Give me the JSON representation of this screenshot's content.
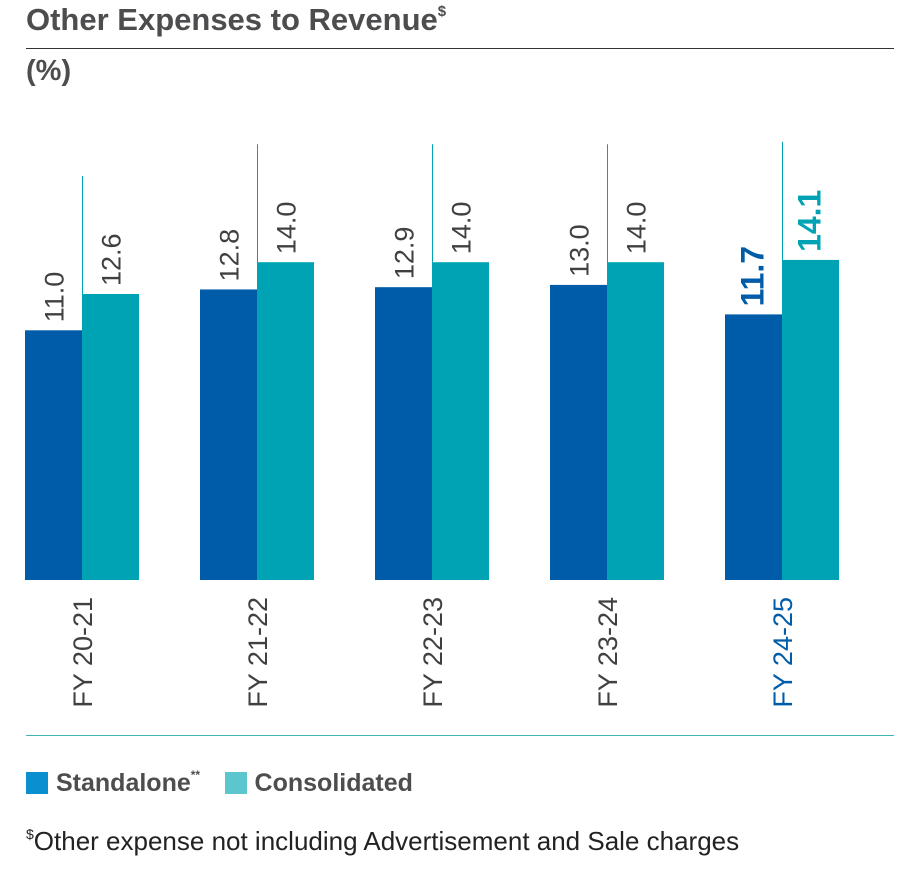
{
  "title": "Other Expenses to Revenue",
  "title_mark": "$",
  "unit": "(%)",
  "colors": {
    "standalone": "#005ca8",
    "consolidated": "#00a3b4",
    "highlight_text_standalone": "#005ca8",
    "highlight_text_consolidated": "#00a3b4",
    "label_text": "#404040"
  },
  "chart_data": {
    "type": "bar",
    "categories": [
      "FY 20-21",
      "FY 21-22",
      "FY 22-23",
      "FY 23-24",
      "FY 24-25"
    ],
    "series": [
      {
        "name": "Standalone",
        "values": [
          11.0,
          12.8,
          12.9,
          13.0,
          11.7
        ]
      },
      {
        "name": "Consolidated",
        "values": [
          12.6,
          14.0,
          14.0,
          14.0,
          14.1
        ]
      }
    ],
    "value_labels": {
      "Standalone": [
        "11.0",
        "12.8",
        "12.9",
        "13.0",
        "11.7"
      ],
      "Consolidated": [
        "12.6",
        "14.0",
        "14.0",
        "14.0",
        "14.1"
      ]
    },
    "highlight_category": "FY 24-25",
    "ylim": [
      0,
      20
    ],
    "grid": false,
    "legend": "bottom-left"
  },
  "legend": {
    "standalone_label": "Standalone",
    "standalone_mark": "**",
    "consolidated_label": "Consolidated"
  },
  "footnote": {
    "mark": "$",
    "text": "Other expense not including Advertisement and Sale charges"
  }
}
